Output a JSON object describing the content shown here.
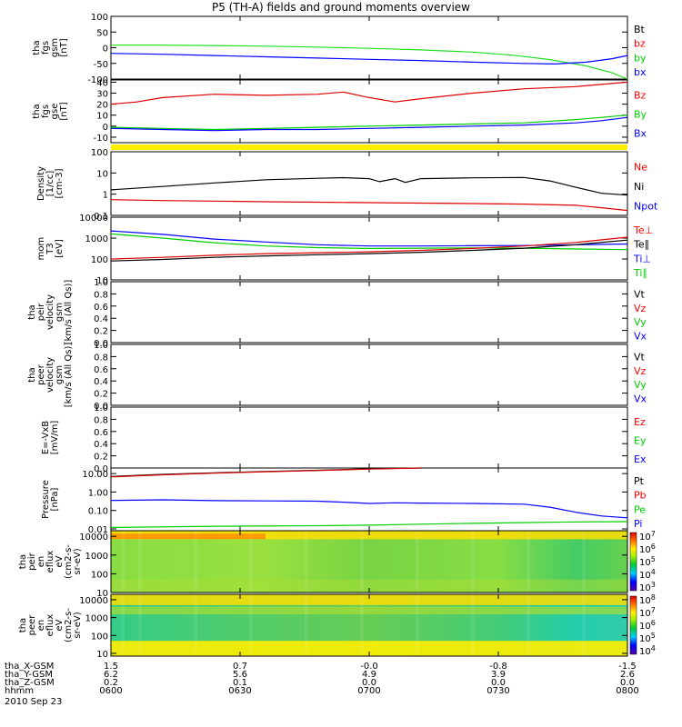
{
  "title": "P5 (TH-A) fields and ground moments overview",
  "chart_data": {
    "type": "line",
    "date": "2010 Sep 23",
    "x_ticks": [
      "0600",
      "0630",
      "0700",
      "0730",
      "0800"
    ],
    "panels": [
      {
        "id": "fgs_gsm_total",
        "ylabel": [
          "tha",
          "fgs",
          "gsm",
          "[nT]"
        ],
        "ylim": [
          -100,
          100
        ],
        "log": false,
        "yticks": [
          100,
          50,
          0,
          -50,
          -100
        ],
        "legend": [
          {
            "name": "Bt",
            "color": "#000000"
          },
          {
            "name": "bz",
            "color": "#ff0000"
          },
          {
            "name": "by",
            "color": "#00cc00"
          },
          {
            "name": "bx",
            "color": "#0000ff"
          }
        ],
        "series": [
          {
            "name": "by",
            "color": "#22dd22",
            "x": [
              0,
              0.1,
              0.2,
              0.3,
              0.4,
              0.5,
              0.6,
              0.7,
              0.78,
              0.85,
              0.92,
              0.97,
              1.0
            ],
            "y": [
              8,
              8,
              7,
              5,
              2,
              -2,
              -7,
              -14,
              -24,
              -38,
              -58,
              -80,
              -100
            ]
          },
          {
            "name": "bx",
            "color": "#0000ff",
            "x": [
              0,
              0.1,
              0.2,
              0.3,
              0.4,
              0.5,
              0.6,
              0.7,
              0.8,
              0.86,
              0.92,
              0.97,
              1.0
            ],
            "y": [
              -18,
              -21,
              -25,
              -29,
              -33,
              -37,
              -41,
              -46,
              -50,
              -52,
              -46,
              -35,
              -25
            ]
          }
        ]
      },
      {
        "id": "fgs_gse",
        "ylabel": [
          "tha",
          "fgs",
          "gse",
          "[nT]"
        ],
        "ylim": [
          -15,
          42
        ],
        "log": false,
        "yticks": [
          40,
          30,
          20,
          10,
          0,
          -10
        ],
        "legend": [
          {
            "name": "Bz",
            "color": "#ff0000"
          },
          {
            "name": "By",
            "color": "#00cc00"
          },
          {
            "name": "Bx",
            "color": "#0000ff"
          }
        ],
        "series": [
          {
            "name": "Bz",
            "color": "#dd0000",
            "x": [
              0,
              0.05,
              0.1,
              0.2,
              0.3,
              0.4,
              0.45,
              0.5,
              0.55,
              0.6,
              0.7,
              0.8,
              0.9,
              1.0
            ],
            "y": [
              20,
              22,
              26,
              29,
              28,
              29,
              31,
              26,
              22,
              25,
              30,
              34,
              36,
              40
            ]
          },
          {
            "name": "By",
            "color": "#00cc00",
            "x": [
              0,
              0.1,
              0.2,
              0.3,
              0.4,
              0.5,
              0.6,
              0.7,
              0.8,
              0.9,
              0.95,
              1.0
            ],
            "y": [
              -1,
              -2,
              -3,
              -2,
              -1,
              0,
              1,
              2,
              3,
              6,
              8,
              10
            ]
          },
          {
            "name": "Bx",
            "color": "#0000ff",
            "x": [
              0,
              0.1,
              0.2,
              0.3,
              0.4,
              0.5,
              0.6,
              0.7,
              0.8,
              0.9,
              0.95,
              1.0
            ],
            "y": [
              -2,
              -3,
              -4,
              -3,
              -3,
              -2,
              -1,
              0,
              1,
              3,
              5,
              8
            ]
          }
        ]
      },
      {
        "id": "density",
        "ylabel": [
          "Density",
          "[1/cc]",
          "[cm-3]"
        ],
        "ylim": [
          0.1,
          100
        ],
        "log": true,
        "yticks": [
          100,
          10,
          1,
          0.1
        ],
        "ytick_labels": [
          "100",
          "10",
          "1",
          "0.1"
        ],
        "legend": [
          {
            "name": "Ne",
            "color": "#ff0000"
          },
          {
            "name": "Ni",
            "color": "#000000"
          },
          {
            "name": "Npot",
            "color": "#0000ff"
          }
        ],
        "series": [
          {
            "name": "Ni",
            "color": "#000000",
            "x": [
              0,
              0.1,
              0.2,
              0.3,
              0.4,
              0.45,
              0.5,
              0.52,
              0.55,
              0.57,
              0.6,
              0.7,
              0.8,
              0.85,
              0.9,
              0.95,
              1.0
            ],
            "y": [
              1.6,
              2.3,
              3.4,
              4.8,
              5.6,
              6,
              5.4,
              3.9,
              5.4,
              3.6,
              5.4,
              5.9,
              6.1,
              4.2,
              2.1,
              1.1,
              0.9
            ]
          },
          {
            "name": "Ne",
            "color": "#dd0000",
            "x": [
              0,
              0.1,
              0.2,
              0.3,
              0.4,
              0.5,
              0.6,
              0.7,
              0.8,
              0.9,
              0.95,
              1.0
            ],
            "y": [
              0.55,
              0.5,
              0.47,
              0.44,
              0.42,
              0.4,
              0.38,
              0.36,
              0.34,
              0.3,
              0.23,
              0.17
            ]
          }
        ]
      },
      {
        "id": "temperature",
        "ylabel": [
          "mom",
          "T3",
          "[eV]"
        ],
        "ylim": [
          10,
          10000
        ],
        "log": true,
        "yticks": [
          10000,
          1000,
          100,
          10
        ],
        "ytick_labels": [
          "10000",
          "1000",
          "100",
          "10"
        ],
        "legend": [
          {
            "name": "Te⊥",
            "color": "#ff0000"
          },
          {
            "name": "Te∥",
            "color": "#000000"
          },
          {
            "name": "Ti⊥",
            "color": "#0000ff"
          },
          {
            "name": "Ti∥",
            "color": "#00cc00"
          }
        ],
        "series": [
          {
            "name": "Ti⊥",
            "color": "#0000ff",
            "x": [
              0,
              0.1,
              0.2,
              0.3,
              0.4,
              0.5,
              0.6,
              0.7,
              0.8,
              0.9,
              1.0
            ],
            "y": [
              2200,
              1500,
              900,
              650,
              480,
              420,
              420,
              430,
              440,
              480,
              520
            ]
          },
          {
            "name": "Ti∥",
            "color": "#00cc00",
            "x": [
              0,
              0.1,
              0.2,
              0.3,
              0.4,
              0.5,
              0.6,
              0.7,
              0.8,
              0.9,
              1.0
            ],
            "y": [
              1600,
              1000,
              600,
              420,
              350,
              320,
              330,
              340,
              330,
              300,
              280
            ]
          },
          {
            "name": "Te⊥",
            "color": "#dd0000",
            "x": [
              0,
              0.1,
              0.2,
              0.3,
              0.4,
              0.5,
              0.6,
              0.7,
              0.8,
              0.9,
              1.0
            ],
            "y": [
              100,
              120,
              150,
              180,
              200,
              220,
              260,
              320,
              420,
              620,
              1100
            ]
          },
          {
            "name": "Te∥",
            "color": "#000000",
            "x": [
              0,
              0.1,
              0.2,
              0.3,
              0.4,
              0.5,
              0.6,
              0.7,
              0.8,
              0.9,
              1.0
            ],
            "y": [
              80,
              95,
              120,
              140,
              160,
              180,
              210,
              260,
              330,
              480,
              800
            ]
          }
        ]
      },
      {
        "id": "peir_velocity",
        "ylabel": [
          "tha",
          "peir",
          "velocity",
          "gsm",
          "[km/s (All Qs)]"
        ],
        "ylim": [
          0,
          1
        ],
        "log": false,
        "yticks": [
          1.0,
          0.8,
          0.6,
          0.4,
          0.2,
          0.0
        ],
        "ytick_labels": [
          "1.0",
          "0.8",
          "0.6",
          "0.4",
          "0.2",
          "0.0"
        ],
        "legend": [
          {
            "name": "Vt",
            "color": "#000000"
          },
          {
            "name": "Vz",
            "color": "#ff0000"
          },
          {
            "name": "Vy",
            "color": "#00cc00"
          },
          {
            "name": "Vx",
            "color": "#0000ff"
          }
        ],
        "series": []
      },
      {
        "id": "peer_velocity",
        "ylabel": [
          "tha",
          "peer",
          "velocity",
          "gsm",
          "[km/s (All Qs)]"
        ],
        "ylim": [
          0,
          1
        ],
        "log": false,
        "yticks": [
          1.0,
          0.8,
          0.6,
          0.4,
          0.2,
          0.0
        ],
        "ytick_labels": [
          "1.0",
          "0.8",
          "0.6",
          "0.4",
          "0.2",
          "0.0"
        ],
        "legend": [
          {
            "name": "Vt",
            "color": "#000000"
          },
          {
            "name": "Vz",
            "color": "#ff0000"
          },
          {
            "name": "Vy",
            "color": "#00cc00"
          },
          {
            "name": "Vx",
            "color": "#0000ff"
          }
        ],
        "series": []
      },
      {
        "id": "e_field",
        "ylabel": [
          "E=-VxB",
          "[mV/m]"
        ],
        "ylim": [
          0,
          1
        ],
        "log": false,
        "yticks": [
          1.0,
          0.8,
          0.6,
          0.4,
          0.2,
          0.0
        ],
        "ytick_labels": [
          "1.0",
          "0.8",
          "0.6",
          "0.4",
          "0.2",
          "0.0"
        ],
        "legend": [
          {
            "name": "Ez",
            "color": "#ff0000"
          },
          {
            "name": "Ey",
            "color": "#00cc00"
          },
          {
            "name": "Ex",
            "color": "#0000ff"
          }
        ],
        "series": []
      },
      {
        "id": "pressure",
        "ylabel": [
          "Pressure",
          "[nPa]"
        ],
        "ylim": [
          0.008,
          20
        ],
        "log": true,
        "yticks": [
          10,
          1,
          0.1,
          0.01
        ],
        "ytick_labels": [
          "10.00",
          "1.00",
          "0.10",
          "0.01"
        ],
        "legend": [
          {
            "name": "Pt",
            "color": "#000000"
          },
          {
            "name": "Pb",
            "color": "#ff0000"
          },
          {
            "name": "Pe",
            "color": "#00cc00"
          },
          {
            "name": "Pi",
            "color": "#0000ff"
          }
        ],
        "series": [
          {
            "name": "Pt",
            "color": "#000000",
            "x": [
              0,
              0.1,
              0.2,
              0.3,
              0.4,
              0.5,
              0.6
            ],
            "y": [
              7,
              9,
              11,
              13,
              15,
              18,
              20
            ]
          },
          {
            "name": "Pb",
            "color": "#dd0000",
            "x": [
              0,
              0.1,
              0.2,
              0.3,
              0.4,
              0.5,
              0.6
            ],
            "y": [
              6.6,
              8.5,
              10.5,
              12.5,
              14.5,
              17.5,
              20
            ]
          },
          {
            "name": "Pi",
            "color": "#0000ff",
            "x": [
              0,
              0.1,
              0.2,
              0.3,
              0.4,
              0.45,
              0.5,
              0.55,
              0.6,
              0.7,
              0.8,
              0.85,
              0.9,
              0.95,
              1.0
            ],
            "y": [
              0.35,
              0.38,
              0.34,
              0.33,
              0.32,
              0.28,
              0.24,
              0.26,
              0.25,
              0.24,
              0.22,
              0.15,
              0.08,
              0.05,
              0.04
            ]
          },
          {
            "name": "Pe",
            "color": "#00cc00",
            "x": [
              0,
              0.2,
              0.4,
              0.5,
              0.6,
              0.7,
              0.8,
              0.9,
              1.0
            ],
            "y": [
              0.012,
              0.014,
              0.015,
              0.016,
              0.018,
              0.02,
              0.022,
              0.024,
              0.025
            ]
          }
        ]
      },
      {
        "id": "peir_en_eflux",
        "type": "heatmap",
        "ylabel": [
          "tha",
          "peir",
          "en",
          "eflux",
          "eV",
          "(cm2-s-",
          "sr-eV)"
        ],
        "ylim": [
          10,
          20000
        ],
        "log": true,
        "yticks": [
          10000,
          1000,
          100,
          10
        ],
        "ytick_labels": [
          "10000",
          "1000",
          "100",
          "10"
        ],
        "colorbar": {
          "labels": [
            "10^7",
            "10^6",
            "10^5",
            "10^4",
            "10^3"
          ]
        }
      },
      {
        "id": "peer_en_eflux",
        "type": "heatmap",
        "ylabel": [
          "tha",
          "peer",
          "en",
          "eflux",
          "eV",
          "(cm2-s-",
          "sr-eV)"
        ],
        "ylim": [
          7,
          20000
        ],
        "log": true,
        "yticks": [
          10000,
          1000,
          100,
          10
        ],
        "ytick_labels": [
          "10000",
          "1000",
          "100",
          "10"
        ],
        "colorbar": {
          "labels": [
            "10^8",
            "10^7",
            "10^6",
            "10^5",
            "10^4"
          ]
        }
      }
    ],
    "ephemeris": {
      "labels": [
        "tha_X-GSM",
        "tha_Y-GSM",
        "tha_Z-GSM",
        "hhmm"
      ],
      "rows": [
        [
          "1.5",
          "0.7",
          "-0.0",
          "-0.8",
          "-1.5"
        ],
        [
          "6.2",
          "5.6",
          "4.9",
          "3.9",
          "2.6"
        ],
        [
          "0.2",
          "0.1",
          "0.0",
          "0.0",
          "0.0"
        ],
        [
          "0600",
          "0630",
          "0700",
          "0730",
          "0800"
        ]
      ]
    }
  }
}
